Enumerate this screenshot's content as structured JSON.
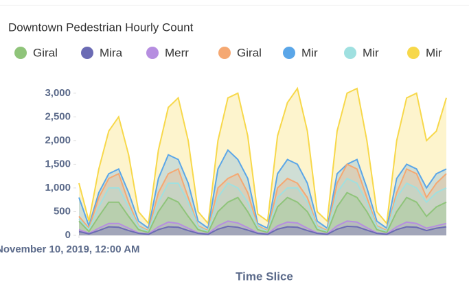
{
  "chart_data": {
    "type": "area",
    "title": "Downtown Pedestrian Hourly Count",
    "x_label": "Time Slice",
    "xlim": [
      0,
      148
    ],
    "xticks": [
      {
        "value": 0,
        "label": "November 10, 2019, 12:00 AM"
      }
    ],
    "ylim": [
      0,
      3200
    ],
    "yticks": [
      0,
      500,
      {
        "value": 1000,
        "label": "1,000"
      },
      {
        "value": 1500,
        "label": "1,500"
      },
      {
        "value": 2000,
        "label": "2,000"
      },
      {
        "value": 2500,
        "label": "2,500"
      },
      {
        "value": 3000,
        "label": "3,000"
      }
    ],
    "x": [
      0,
      4,
      8,
      12,
      16,
      20,
      24,
      28,
      32,
      36,
      40,
      44,
      48,
      52,
      56,
      60,
      64,
      68,
      72,
      76,
      80,
      84,
      88,
      92,
      96,
      100,
      104,
      108,
      112,
      116,
      120,
      124,
      128,
      132,
      136,
      140,
      144,
      148
    ],
    "series": [
      {
        "name": "Giral",
        "color": "#8fc47a",
        "values": [
          300,
          80,
          400,
          700,
          700,
          400,
          120,
          60,
          500,
          800,
          700,
          400,
          120,
          60,
          500,
          700,
          800,
          500,
          120,
          60,
          600,
          800,
          700,
          500,
          120,
          60,
          600,
          900,
          800,
          500,
          120,
          60,
          500,
          800,
          700,
          400,
          600,
          700
        ]
      },
      {
        "name": "Mira",
        "color": "#6b6bb4",
        "values": [
          80,
          30,
          100,
          180,
          170,
          100,
          40,
          20,
          120,
          180,
          170,
          100,
          40,
          20,
          130,
          190,
          170,
          110,
          40,
          20,
          130,
          180,
          170,
          100,
          40,
          20,
          130,
          190,
          180,
          110,
          40,
          20,
          120,
          180,
          170,
          100,
          150,
          180
        ]
      },
      {
        "name": "Merr",
        "color": "#b68ee0",
        "values": [
          120,
          40,
          150,
          250,
          250,
          150,
          50,
          30,
          180,
          280,
          250,
          150,
          50,
          30,
          200,
          300,
          260,
          160,
          50,
          30,
          200,
          280,
          260,
          150,
          50,
          30,
          200,
          300,
          280,
          160,
          50,
          30,
          180,
          280,
          250,
          150,
          200,
          250
        ]
      },
      {
        "name": "Giral",
        "color": "#f5a872",
        "values": [
          400,
          150,
          800,
          1200,
          1300,
          700,
          200,
          100,
          900,
          1300,
          1400,
          800,
          200,
          100,
          1000,
          1200,
          1300,
          900,
          200,
          100,
          1000,
          1200,
          1100,
          800,
          200,
          100,
          1100,
          1500,
          1400,
          800,
          200,
          100,
          900,
          1400,
          1300,
          800,
          1100,
          1300
        ]
      },
      {
        "name": "Mir",
        "color": "#5aa6e8",
        "values": [
          800,
          200,
          900,
          1300,
          1400,
          900,
          300,
          150,
          1200,
          1700,
          1600,
          1100,
          300,
          150,
          1400,
          1800,
          1600,
          1200,
          250,
          150,
          1300,
          1600,
          1500,
          1100,
          300,
          150,
          1300,
          1500,
          1600,
          1000,
          300,
          150,
          1200,
          1500,
          1400,
          1000,
          1300,
          1400
        ]
      },
      {
        "name": "Mir",
        "color": "#9fe0e0",
        "values": [
          350,
          120,
          600,
          1000,
          1000,
          600,
          180,
          80,
          700,
          1100,
          1100,
          700,
          180,
          80,
          800,
          1100,
          1000,
          700,
          180,
          80,
          800,
          1000,
          1000,
          700,
          180,
          80,
          900,
          1200,
          1100,
          700,
          180,
          80,
          800,
          1100,
          1000,
          700,
          900,
          1000
        ]
      },
      {
        "name": "Mir",
        "color": "#f7d84a",
        "values": [
          1100,
          300,
          1400,
          2200,
          2500,
          1700,
          500,
          250,
          1800,
          2700,
          2900,
          2000,
          500,
          250,
          2000,
          2900,
          3000,
          2100,
          450,
          300,
          2100,
          2800,
          3100,
          2200,
          500,
          300,
          2200,
          3000,
          3100,
          2000,
          500,
          250,
          2000,
          2900,
          3000,
          2000,
          2200,
          2900
        ]
      }
    ]
  }
}
